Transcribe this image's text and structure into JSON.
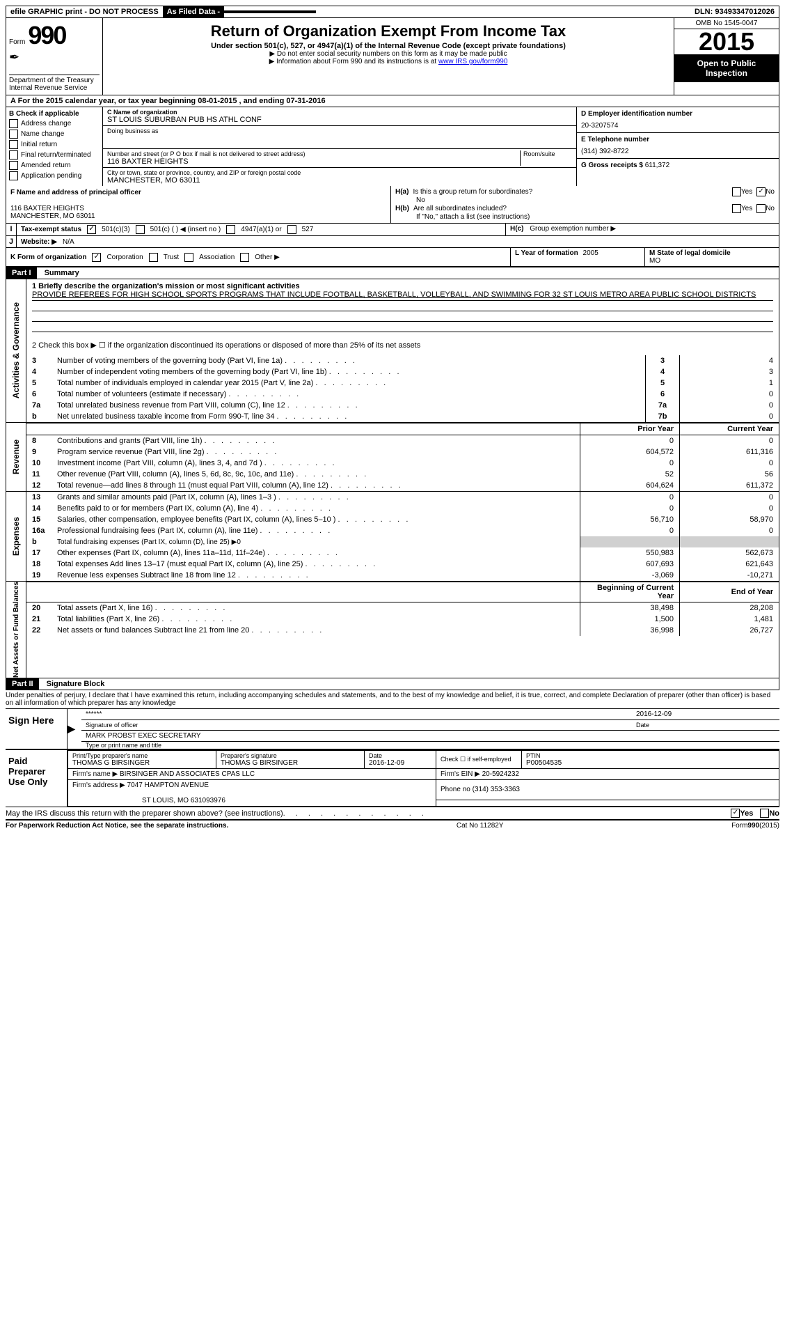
{
  "topbar": {
    "efile": "efile GRAPHIC print - DO NOT PROCESS",
    "asfiled": "As Filed Data -",
    "dln_label": "DLN:",
    "dln": "93493347012026"
  },
  "header": {
    "form_word": "Form",
    "form_number": "990",
    "dept": "Department of the Treasury",
    "irs": "Internal Revenue Service",
    "title": "Return of Organization Exempt From Income Tax",
    "subtitle": "Under section 501(c), 527, or 4947(a)(1) of the Internal Revenue Code (except private foundations)",
    "note1": "▶ Do not enter social security numbers on this form as it may be made public",
    "note2_pre": "▶ Information about Form 990 and its instructions is at ",
    "note2_link": "www IRS gov/form990",
    "omb": "OMB No 1545-0047",
    "year": "2015",
    "open": "Open to Public Inspection"
  },
  "rowA": {
    "text_pre": "A  For the 2015 calendar year, or tax year beginning ",
    "begin": "08-01-2015",
    "mid": "   , and ending ",
    "end": "07-31-2016"
  },
  "colB": {
    "header": "B  Check if applicable",
    "addr_change": "Address change",
    "name_change": "Name change",
    "initial": "Initial return",
    "final": "Final return/terminated",
    "amended": "Amended return",
    "app_pending": "Application pending"
  },
  "colC": {
    "name_label": "C  Name of organization",
    "name": "ST LOUIS SUBURBAN PUB HS ATHL CONF",
    "dba_label": "Doing business as",
    "dba": "",
    "street_label": "Number and street (or P O box if mail is not delivered to street address)",
    "room_label": "Room/suite",
    "street": "116 BAXTER HEIGHTS",
    "city_label": "City or town, state or province, country, and ZIP or foreign postal code",
    "city": "MANCHESTER, MO  63011",
    "f_label": "F  Name and address of principal officer",
    "f_addr1": "116 BAXTER HEIGHTS",
    "f_addr2": "MANCHESTER, MO  63011"
  },
  "colD": {
    "d_label": "D Employer identification number",
    "ein": "20-3207574",
    "e_label": "E Telephone number",
    "phone": "(314) 392-8722",
    "g_label": "G Gross receipts $",
    "gross": "611,372"
  },
  "hgroup": {
    "ha_label": "H(a)",
    "ha_text": "Is this a group return for subordinates?",
    "ha_no": "No",
    "yes": "Yes",
    "no": "No",
    "hb_label": "H(b)",
    "hb_text": "Are all subordinates included?",
    "hb_note": "If \"No,\" attach a list (see instructions)",
    "hc_label": "H(c)",
    "hc_text": "Group exemption number ▶"
  },
  "statusI": {
    "label": "Tax-exempt status",
    "c3": "501(c)(3)",
    "c": "501(c) (  ) ◀ (insert no )",
    "a1": "4947(a)(1) or",
    "s527": "527"
  },
  "rowJ": {
    "label": "Website: ▶",
    "value": "N/A"
  },
  "rowK": {
    "label": "K Form of organization",
    "corp": "Corporation",
    "trust": "Trust",
    "assoc": "Association",
    "other": "Other ▶",
    "l_label": "L Year of formation",
    "l_value": "2005",
    "m_label": "M State of legal domicile",
    "m_value": "MO"
  },
  "part1": {
    "header": "Part I",
    "title": "Summary",
    "side_activities": "Activities & Governance",
    "side_revenue": "Revenue",
    "side_expenses": "Expenses",
    "side_net": "Net Assets or Fund Balances",
    "q1_label": "1 Briefly describe the organization's mission or most significant activities",
    "q1_text": "PROVIDE REFEREES FOR HIGH SCHOOL SPORTS PROGRAMS THAT INCLUDE FOOTBALL, BASKETBALL, VOLLEYBALL, AND SWIMMING FOR 32 ST LOUIS METRO AREA PUBLIC SCHOOL DISTRICTS",
    "q2": "2  Check this box ▶ ☐ if the organization discontinued its operations or disposed of more than 25% of its net assets",
    "rows_gov": [
      {
        "n": "3",
        "label": "Number of voting members of the governing body (Part VI, line 1a)",
        "ref": "3",
        "val": "4"
      },
      {
        "n": "4",
        "label": "Number of independent voting members of the governing body (Part VI, line 1b)",
        "ref": "4",
        "val": "3"
      },
      {
        "n": "5",
        "label": "Total number of individuals employed in calendar year 2015 (Part V, line 2a)",
        "ref": "5",
        "val": "1"
      },
      {
        "n": "6",
        "label": "Total number of volunteers (estimate if necessary)",
        "ref": "6",
        "val": "0"
      },
      {
        "n": "7a",
        "label": "Total unrelated business revenue from Part VIII, column (C), line 12",
        "ref": "7a",
        "val": "0"
      },
      {
        "n": "b",
        "label": "Net unrelated business taxable income from Form 990-T, line 34",
        "ref": "7b",
        "val": "0"
      }
    ],
    "col_prior": "Prior Year",
    "col_current": "Current Year",
    "rows_rev": [
      {
        "n": "8",
        "label": "Contributions and grants (Part VIII, line 1h)",
        "p": "0",
        "c": "0"
      },
      {
        "n": "9",
        "label": "Program service revenue (Part VIII, line 2g)",
        "p": "604,572",
        "c": "611,316"
      },
      {
        "n": "10",
        "label": "Investment income (Part VIII, column (A), lines 3, 4, and 7d )",
        "p": "0",
        "c": "0"
      },
      {
        "n": "11",
        "label": "Other revenue (Part VIII, column (A), lines 5, 6d, 8c, 9c, 10c, and 11e)",
        "p": "52",
        "c": "56"
      },
      {
        "n": "12",
        "label": "Total revenue—add lines 8 through 11 (must equal Part VIII, column (A), line 12)",
        "p": "604,624",
        "c": "611,372"
      }
    ],
    "rows_exp": [
      {
        "n": "13",
        "label": "Grants and similar amounts paid (Part IX, column (A), lines 1–3 )",
        "p": "0",
        "c": "0"
      },
      {
        "n": "14",
        "label": "Benefits paid to or for members (Part IX, column (A), line 4)",
        "p": "0",
        "c": "0"
      },
      {
        "n": "15",
        "label": "Salaries, other compensation, employee benefits (Part IX, column (A), lines 5–10 )",
        "p": "56,710",
        "c": "58,970"
      },
      {
        "n": "16a",
        "label": "Professional fundraising fees (Part IX, column (A), line 11e)",
        "p": "0",
        "c": "0"
      },
      {
        "n": "b",
        "label": "Total fundraising expenses (Part IX, column (D), line 25) ▶0",
        "p": "",
        "c": "",
        "gray": true
      },
      {
        "n": "17",
        "label": "Other expenses (Part IX, column (A), lines 11a–11d, 11f–24e)",
        "p": "550,983",
        "c": "562,673"
      },
      {
        "n": "18",
        "label": "Total expenses Add lines 13–17 (must equal Part IX, column (A), line 25)",
        "p": "607,693",
        "c": "621,643"
      },
      {
        "n": "19",
        "label": "Revenue less expenses Subtract line 18 from line 12",
        "p": "-3,069",
        "c": "-10,271"
      }
    ],
    "col_begin": "Beginning of Current Year",
    "col_end": "End of Year",
    "rows_net": [
      {
        "n": "20",
        "label": "Total assets (Part X, line 16)",
        "p": "38,498",
        "c": "28,208"
      },
      {
        "n": "21",
        "label": "Total liabilities (Part X, line 26)",
        "p": "1,500",
        "c": "1,481"
      },
      {
        "n": "22",
        "label": "Net assets or fund balances Subtract line 21 from line 20",
        "p": "36,998",
        "c": "26,727"
      }
    ]
  },
  "part2": {
    "header": "Part II",
    "title": "Signature Block",
    "declare": "Under penalties of perjury, I declare that I have examined this return, including accompanying schedules and statements, and to the best of my knowledge and belief, it is true, correct, and complete Declaration of preparer (other than officer) is based on all information of which preparer has any knowledge",
    "sign_here": "Sign Here",
    "sig_redacted": "******",
    "sig_officer_label": "Signature of officer",
    "sig_date": "2016-12-09",
    "sig_date_label": "Date",
    "sig_name": "MARK PROBST EXEC SECRETARY",
    "sig_name_label": "Type or print name and title",
    "paid_prep": "Paid Preparer Use Only",
    "prep_name_label": "Print/Type preparer's name",
    "prep_name": "THOMAS G BIRSINGER",
    "prep_sig_label": "Preparer's signature",
    "prep_sig": "THOMAS G BIRSINGER",
    "prep_date_label": "Date",
    "prep_date": "2016-12-09",
    "prep_check_label": "Check ☐ if self-employed",
    "ptin_label": "PTIN",
    "ptin": "P00504535",
    "firm_name_label": "Firm's name    ▶",
    "firm_name": "BIRSINGER AND ASSOCIATES CPAS LLC",
    "firm_ein_label": "Firm's EIN ▶",
    "firm_ein": "20-5924232",
    "firm_addr_label": "Firm's address ▶",
    "firm_addr1": "7047 HAMPTON AVENUE",
    "firm_addr2": "ST LOUIS, MO  631093976",
    "phone_label": "Phone no",
    "phone": "(314) 353-3363",
    "discuss": "May the IRS discuss this return with the preparer shown above? (see instructions)",
    "discuss_yes": "Yes",
    "discuss_no": "No"
  },
  "footer": {
    "paperwork": "For Paperwork Reduction Act Notice, see the separate instructions.",
    "catno": "Cat No 11282Y",
    "formrev": "Form 990 (2015)"
  }
}
